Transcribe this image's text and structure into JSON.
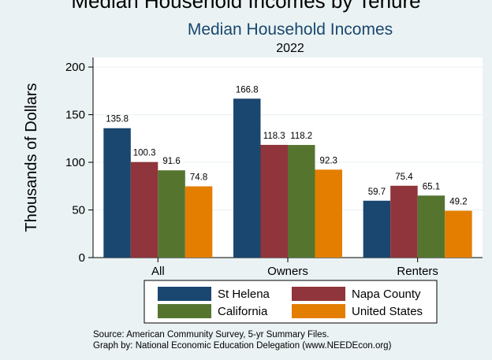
{
  "chart_data": {
    "type": "bar",
    "title": "Median Household Incomes",
    "subtitle": "2022",
    "ylabel": "Thousands of Dollars",
    "xlabel": "",
    "ylim": [
      0,
      210
    ],
    "yticks": [
      0,
      50,
      100,
      150,
      200
    ],
    "grid": true,
    "legend_position": "bottom",
    "categories": [
      "All",
      "Owners",
      "Renters"
    ],
    "series": [
      {
        "name": "St Helena",
        "color": "#1a476f",
        "values": [
          135.8,
          166.8,
          59.7
        ]
      },
      {
        "name": "Napa County",
        "color": "#90353b",
        "values": [
          100.3,
          118.3,
          75.4
        ]
      },
      {
        "name": "California",
        "color": "#55752f",
        "values": [
          91.6,
          118.2,
          65.1
        ]
      },
      {
        "name": "United States",
        "color": "#e37e00",
        "values": [
          74.8,
          92.3,
          49.2
        ]
      }
    ],
    "notes": [
      "Source: American Community Survey, 5-yr Summary Files.",
      "Graph by: National Economic Education Delegation (www.NEEDEcon.org)"
    ],
    "top_clipped_text": "Median Household Incomes by Tenure"
  }
}
